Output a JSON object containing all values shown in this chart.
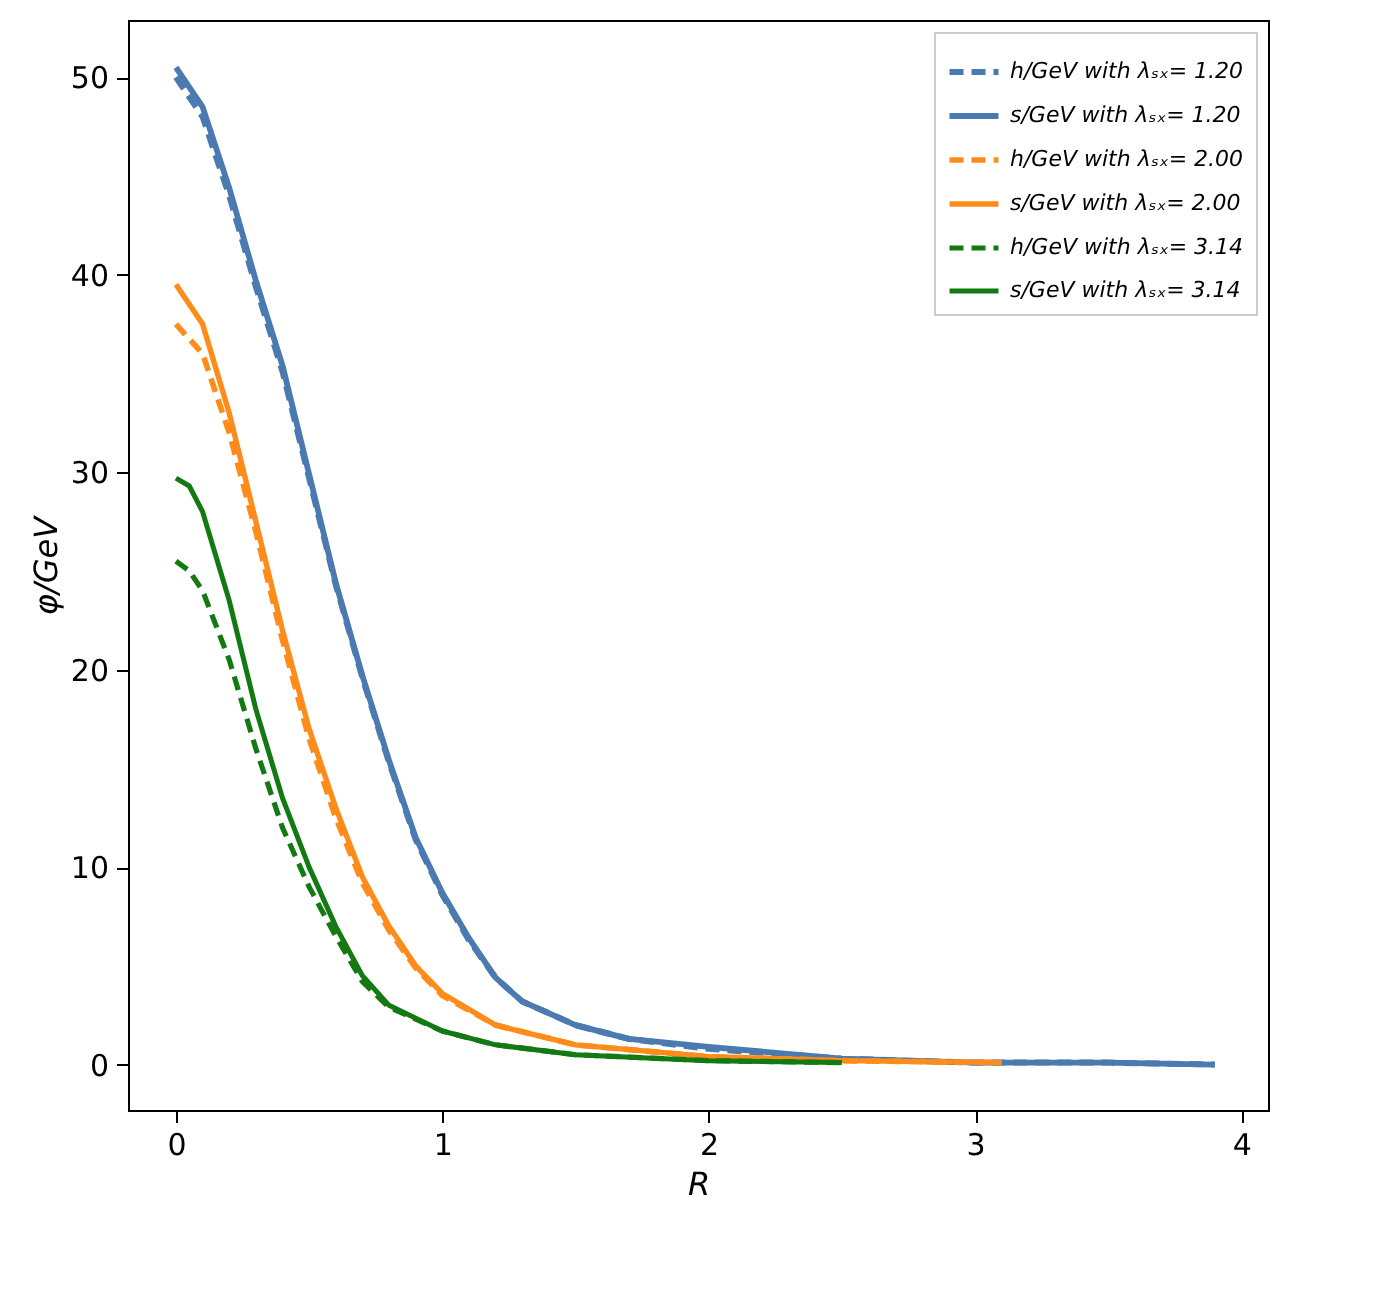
{
  "chart_data": {
    "type": "line",
    "xlabel": "R",
    "ylabel": "φ/GeV",
    "xlim": [
      -0.18,
      4.1
    ],
    "ylim": [
      -2.3,
      52.9
    ],
    "xticks": [
      0,
      1,
      2,
      3,
      4
    ],
    "yticks": [
      0,
      10,
      20,
      30,
      40,
      50
    ],
    "grid": false,
    "legend": "top right",
    "series": [
      {
        "name": "h/GeV with λₛₓ= 1.20",
        "color": "#4a7ab0",
        "line_style": "dashed",
        "x": [
          0,
          0.1,
          0.2,
          0.3,
          0.4,
          0.5,
          0.6,
          0.7,
          0.8,
          0.9,
          1.0,
          1.1,
          1.2,
          1.3,
          1.5,
          1.7,
          2.0,
          2.5,
          3.0,
          3.5,
          3.9
        ],
        "values": [
          50.0,
          48.0,
          44.0,
          39.4,
          35.1,
          29.7,
          24.3,
          19.6,
          15.3,
          11.4,
          8.6,
          6.3,
          4.4,
          3.2,
          2.0,
          1.3,
          0.8,
          0.3,
          0.1,
          0.1,
          0
        ]
      },
      {
        "name": "s/GeV with λₛₓ= 1.20",
        "color": "#4a7ab0",
        "line_style": "solid",
        "x": [
          0,
          0.1,
          0.2,
          0.3,
          0.4,
          0.5,
          0.6,
          0.7,
          0.8,
          0.9,
          1.0,
          1.1,
          1.2,
          1.3,
          1.5,
          1.7,
          2.0,
          2.5,
          3.0,
          3.5,
          3.9
        ],
        "values": [
          50.5,
          48.5,
          44.4,
          39.7,
          35.4,
          29.9,
          24.4,
          19.7,
          15.4,
          11.5,
          8.7,
          6.4,
          4.4,
          3.2,
          2.0,
          1.3,
          0.9,
          0.3,
          0.1,
          0.1,
          0
        ]
      },
      {
        "name": "h/GeV with λₛₓ= 2.00",
        "color": "#ff8c1a",
        "line_style": "dashed",
        "x": [
          0,
          0.1,
          0.2,
          0.3,
          0.4,
          0.5,
          0.6,
          0.7,
          0.8,
          0.9,
          1.0,
          1.2,
          1.5,
          2.0,
          2.5,
          3.1
        ],
        "values": [
          37.5,
          36.0,
          32.0,
          27.0,
          21.5,
          16.5,
          12.5,
          9.2,
          6.8,
          4.9,
          3.5,
          2.0,
          1.0,
          0.4,
          0.2,
          0.1
        ]
      },
      {
        "name": "s/GeV with λₛₓ= 2.00",
        "color": "#ff8c1a",
        "line_style": "solid",
        "x": [
          0,
          0.1,
          0.2,
          0.3,
          0.4,
          0.5,
          0.6,
          0.7,
          0.8,
          0.9,
          1.0,
          1.2,
          1.5,
          2.0,
          2.5,
          3.1
        ],
        "values": [
          39.5,
          37.5,
          33.0,
          27.5,
          22.0,
          17.0,
          13.0,
          9.5,
          7.0,
          5.0,
          3.6,
          2.0,
          1.0,
          0.4,
          0.2,
          0.1
        ]
      },
      {
        "name": "h/GeV with λₛₓ= 3.14",
        "color": "#137a13",
        "line_style": "dashed",
        "x": [
          0,
          0.05,
          0.1,
          0.2,
          0.3,
          0.4,
          0.5,
          0.6,
          0.7,
          0.8,
          1.0,
          1.2,
          1.5,
          2.0,
          2.5
        ],
        "values": [
          25.5,
          25.0,
          24.0,
          20.5,
          16.0,
          12.0,
          9.0,
          6.5,
          4.2,
          2.9,
          1.7,
          1.0,
          0.5,
          0.2,
          0.1
        ]
      },
      {
        "name": "s/GeV with λₛₓ= 3.14",
        "color": "#137a13",
        "line_style": "solid",
        "x": [
          0,
          0.05,
          0.1,
          0.2,
          0.3,
          0.4,
          0.5,
          0.6,
          0.7,
          0.8,
          1.0,
          1.2,
          1.5,
          2.0,
          2.5
        ],
        "values": [
          29.7,
          29.3,
          28.0,
          23.5,
          18.0,
          13.5,
          10.0,
          7.0,
          4.5,
          3.0,
          1.7,
          1.0,
          0.5,
          0.2,
          0.1
        ]
      }
    ]
  }
}
